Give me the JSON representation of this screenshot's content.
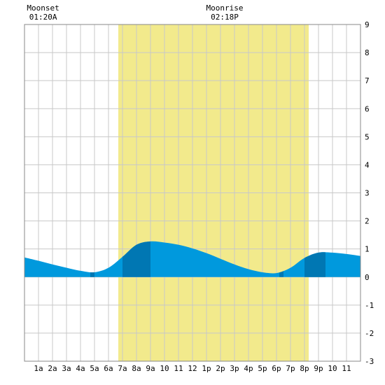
{
  "chart_data": {
    "type": "area",
    "annotations": [
      {
        "label": "Moonset",
        "time": "01:20A",
        "hour": 1.33
      },
      {
        "label": "Moonrise",
        "time": "02:18P",
        "hour": 14.3
      }
    ],
    "daylight": {
      "start_hour": 6.7,
      "end_hour": 20.3
    },
    "x_ticks": [
      "1a",
      "2a",
      "3a",
      "4a",
      "5a",
      "6a",
      "7a",
      "8a",
      "9a",
      "10",
      "11",
      "12",
      "1p",
      "2p",
      "3p",
      "4p",
      "5p",
      "6p",
      "7p",
      "8p",
      "9p",
      "10",
      "11"
    ],
    "ylim": [
      -3,
      9
    ],
    "y_ticks": [
      "9",
      "8",
      "7",
      "6",
      "5",
      "4",
      "3",
      "2",
      "1",
      "0",
      "-1",
      "-2",
      "-3"
    ],
    "xlim": [
      0,
      24
    ],
    "grid": true,
    "series": [
      {
        "x": [
          0,
          1,
          2,
          3,
          4,
          5,
          6,
          7,
          8,
          9,
          10,
          11,
          12,
          13,
          14,
          15,
          16,
          17,
          18,
          19,
          20,
          21,
          22,
          23,
          24
        ],
        "y": [
          0.7,
          0.58,
          0.45,
          0.33,
          0.22,
          0.17,
          0.33,
          0.72,
          1.15,
          1.27,
          1.23,
          1.15,
          1.02,
          0.85,
          0.65,
          0.45,
          0.28,
          0.17,
          0.14,
          0.33,
          0.68,
          0.87,
          0.87,
          0.82,
          0.75
        ]
      }
    ],
    "shade_bands": [
      {
        "from": 4.7,
        "to": 5.0
      },
      {
        "from": 7.0,
        "to": 9.0
      },
      {
        "from": 18.2,
        "to": 18.5
      },
      {
        "from": 20.0,
        "to": 21.5
      }
    ],
    "colors": {
      "water": "#0099dd",
      "water_dark": "#0077b3",
      "daylight": "#f2ea8c",
      "grid": "#c8c8c8",
      "frame": "#888888"
    }
  }
}
